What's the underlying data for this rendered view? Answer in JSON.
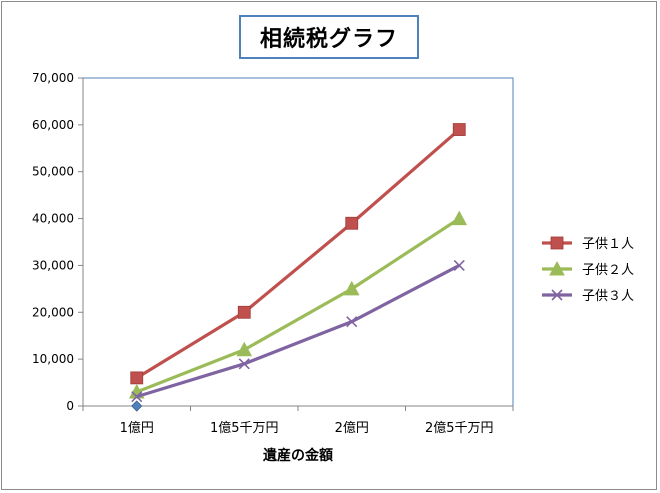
{
  "chart_data": {
    "type": "line",
    "title": "相続税グラフ",
    "xlabel": "遺産の金額",
    "ylabel": "",
    "categories": [
      "1億円",
      "1億5千万円",
      "2億円",
      "2億5千万円"
    ],
    "ylim": [
      0,
      70000
    ],
    "yticks": [
      0,
      10000,
      20000,
      30000,
      40000,
      50000,
      60000,
      70000
    ],
    "ytick_labels": [
      "0",
      "10,000",
      "20,000",
      "30,000",
      "40,000",
      "50,000",
      "60,000",
      "70,000"
    ],
    "grid": false,
    "legend_position": "right",
    "series": [
      {
        "name": "",
        "values": [
          0,
          null,
          null,
          null
        ],
        "color": "#4f81bd",
        "marker": "diamond",
        "line": false
      },
      {
        "name": "子供１人",
        "values": [
          6000,
          20000,
          39000,
          59000
        ],
        "color": "#c0504d",
        "marker": "square",
        "line": true
      },
      {
        "name": "子供２人",
        "values": [
          3000,
          12000,
          25000,
          40000
        ],
        "color": "#9bbb59",
        "marker": "triangle",
        "line": true
      },
      {
        "name": "子供３人",
        "values": [
          2000,
          9000,
          18000,
          30000
        ],
        "color": "#8064a2",
        "marker": "x",
        "line": true
      }
    ]
  }
}
